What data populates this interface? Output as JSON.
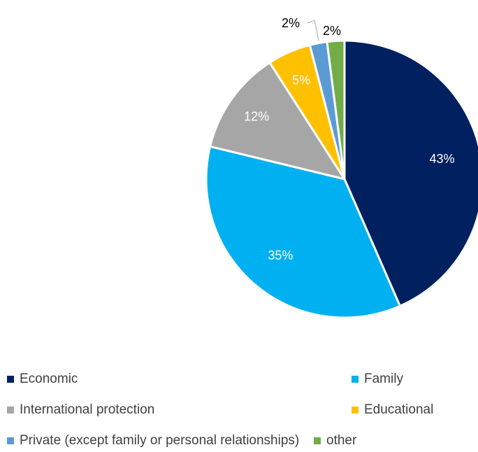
{
  "chart_data": {
    "type": "pie",
    "title": "",
    "slices": [
      {
        "name": "Economic",
        "value": 43,
        "label": "43%",
        "color": "#002060"
      },
      {
        "name": "Family",
        "value": 35,
        "label": "35%",
        "color": "#00B0F0"
      },
      {
        "name": "International protection",
        "value": 12,
        "label": "12%",
        "color": "#A6A6A6"
      },
      {
        "name": "Educational",
        "value": 5,
        "label": "5%",
        "color": "#FFC000"
      },
      {
        "name": "Private (except family or personal relationships)",
        "value": 2,
        "label": "2%",
        "color": "#5B9BD5"
      },
      {
        "name": "other",
        "value": 2,
        "label": "2%",
        "color": "#70AD47"
      }
    ],
    "legend_position": "bottom"
  }
}
